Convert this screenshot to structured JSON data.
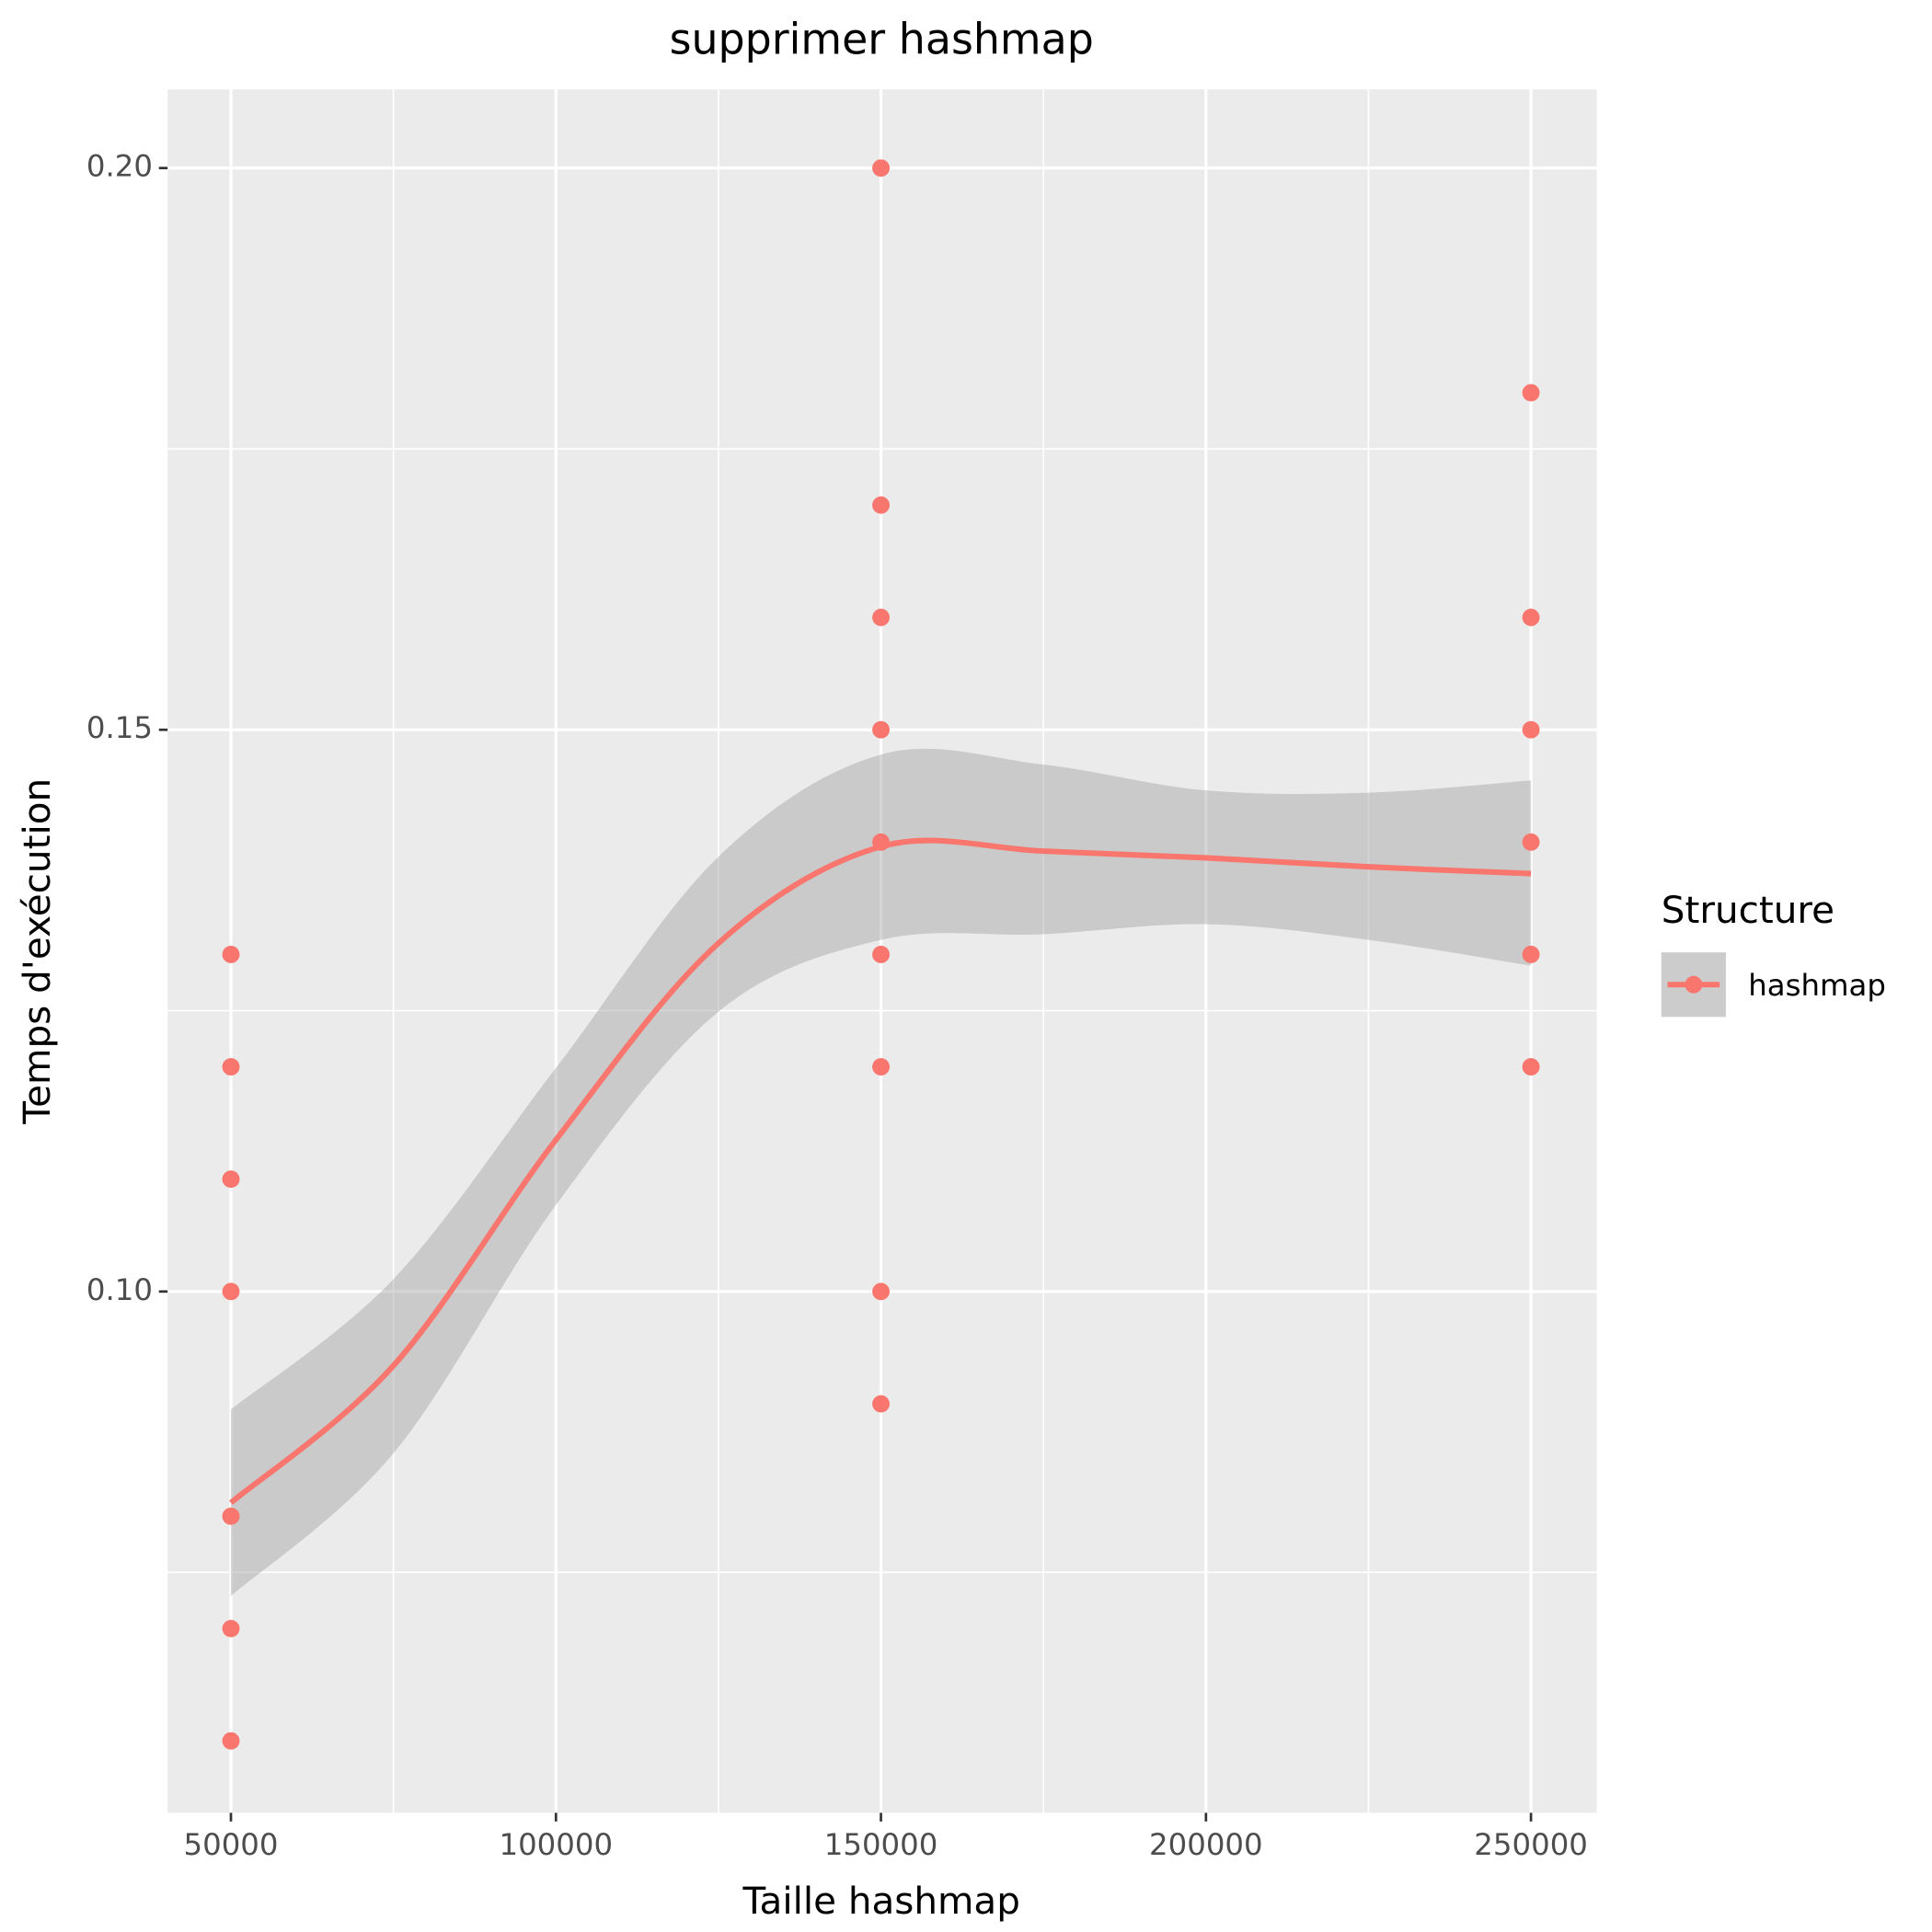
{
  "chart_data": {
    "type": "scatter",
    "title": "supprimer hashmap",
    "x_label": "Taille hashmap",
    "y_label": "Temps d'exécution",
    "legend_title": "Structure",
    "xlim": [
      40260,
      260120
    ],
    "ylim": [
      0.0536,
      0.207
    ],
    "xticks": [
      50000,
      100000,
      150000,
      200000,
      250000
    ],
    "xminor": [
      75000,
      125000,
      175000,
      225000
    ],
    "yticks": [
      {
        "value": 0.1,
        "label": "0.10"
      },
      0.15,
      {
        "value": 0.2,
        "label": "0.20"
      }
    ],
    "yminor": [
      0.075,
      0.125,
      0.175
    ],
    "grid": true,
    "series": [
      {
        "name": "hashmap",
        "color": "#F8766D",
        "x": [
          50000,
          50000,
          50000,
          50000,
          50000,
          50000,
          50000,
          150000,
          150000,
          150000,
          150000,
          150000,
          150000,
          150000,
          150000,
          150000,
          250000,
          250000,
          250000,
          250000,
          250000,
          250000
        ],
        "values": [
          0.13,
          0.12,
          0.11,
          0.1,
          0.08,
          0.07,
          0.06,
          0.2,
          0.17,
          0.16,
          0.15,
          0.14,
          0.13,
          0.12,
          0.1,
          0.09,
          0.18,
          0.16,
          0.15,
          0.14,
          0.13,
          0.12
        ]
      }
    ],
    "smooth": {
      "color": "#F8766D",
      "band_color": "#999999",
      "x": [
        50000,
        75000,
        100000,
        125000,
        150000,
        175000,
        200000,
        225000,
        250000
      ],
      "values": [
        0.0812,
        0.0934,
        0.1135,
        0.131,
        0.1396,
        0.1392,
        0.1386,
        0.1378,
        0.1372
      ],
      "upper": [
        0.0895,
        0.1011,
        0.1199,
        0.1387,
        0.1478,
        0.1469,
        0.1446,
        0.1444,
        0.1455
      ],
      "lower": [
        0.0729,
        0.0856,
        0.1077,
        0.1249,
        0.1313,
        0.1318,
        0.1327,
        0.1313,
        0.129
      ]
    }
  }
}
